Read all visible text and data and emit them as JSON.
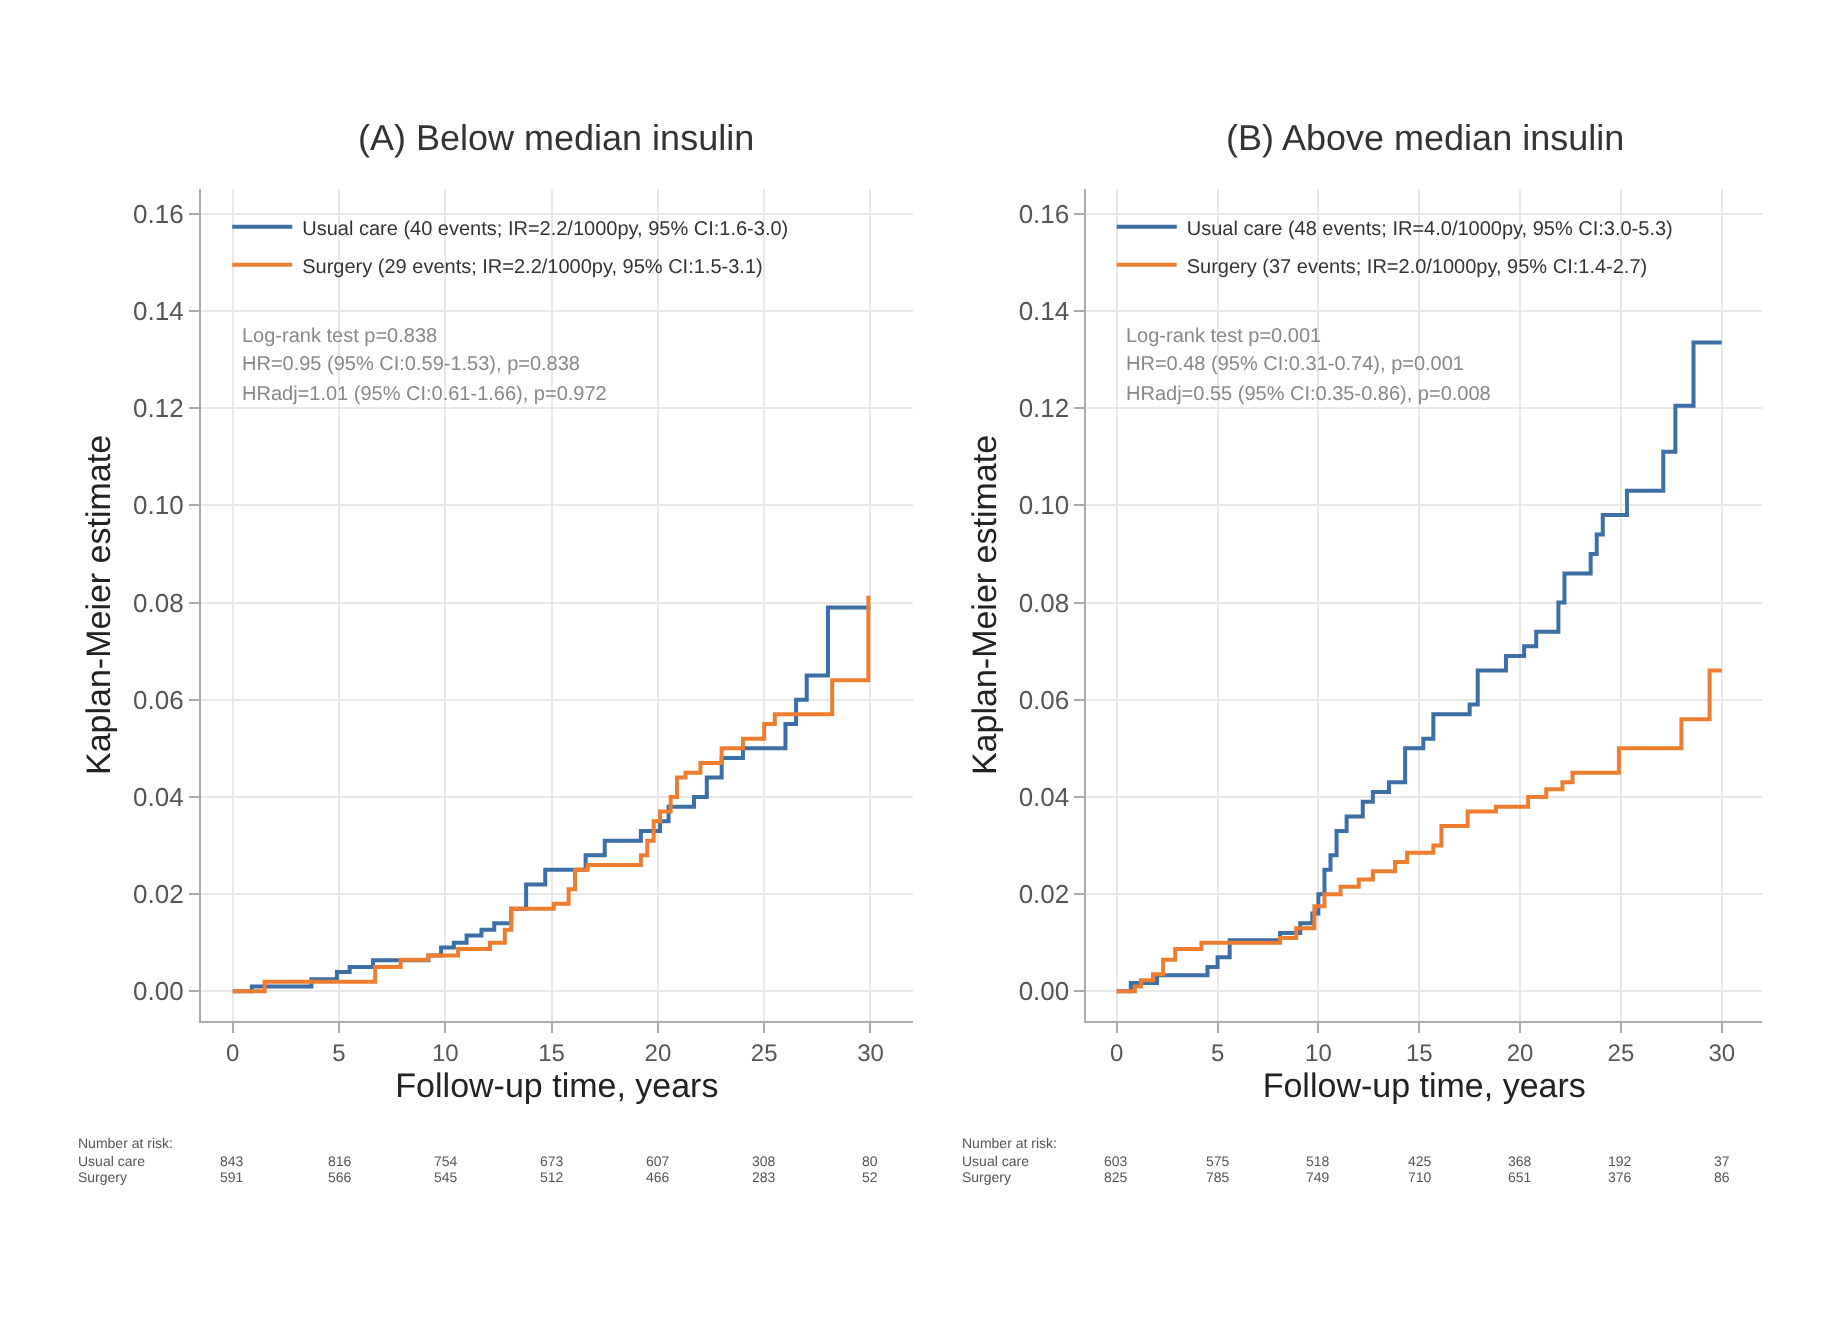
{
  "chart_data": [
    {
      "type": "step",
      "title": "(A) Below median insulin",
      "xlabel": "Follow-up time, years",
      "ylabel": "Kaplan-Meier estimate",
      "xlim": [
        -1.5,
        32
      ],
      "ylim": [
        -0.006,
        0.165
      ],
      "xticks": [
        0,
        5,
        10,
        15,
        20,
        25,
        30
      ],
      "yticks": [
        {
          "value": 0,
          "label": "0.00"
        },
        {
          "value": 0.02,
          "label": "0.02"
        },
        {
          "value": 0.04,
          "label": "0.04"
        },
        {
          "value": 0.06,
          "label": "0.06"
        },
        {
          "value": 0.08,
          "label": "0.08"
        },
        {
          "value": 0.1,
          "label": "0.10"
        },
        {
          "value": 0.12,
          "label": "0.12"
        },
        {
          "value": 0.14,
          "label": "0.14"
        },
        {
          "value": 0.16,
          "label": "0.16"
        }
      ],
      "grid": true,
      "legend": "top left",
      "series": [
        {
          "name": "Usual care (40 events; IR=2.2/1000py, 95% CI:1.6-3.0)",
          "color": "#3b6fa6",
          "x": [
            0,
            0.9,
            3.7,
            4.9,
            5.5,
            6.6,
            9.2,
            9.8,
            10.4,
            11.0,
            11.7,
            12.3,
            13.1,
            13.8,
            14.7,
            16.6,
            17.5,
            19.2,
            20.1,
            20.5,
            21.7,
            22.3,
            23,
            24,
            26,
            26.5,
            27,
            28,
            30
          ],
          "values": [
            0,
            0.001,
            0.0025,
            0.004,
            0.005,
            0.0064,
            0.0074,
            0.009,
            0.01,
            0.0115,
            0.0127,
            0.014,
            0.017,
            0.022,
            0.025,
            0.028,
            0.031,
            0.033,
            0.035,
            0.038,
            0.04,
            0.044,
            0.048,
            0.05,
            0.055,
            0.06,
            0.065,
            0.079,
            0.079
          ]
        },
        {
          "name": "Surgery (29 events; IR=2.2/1000py, 95% CI:1.5-3.1)",
          "color": "#ee7d2f",
          "x": [
            0,
            1.5,
            6.7,
            7.9,
            9.2,
            10.6,
            12.1,
            12.8,
            13.1,
            15.1,
            15.8,
            16.1,
            16.7,
            19.2,
            19.5,
            19.8,
            20.1,
            20.6,
            20.9,
            21.3,
            22,
            23,
            24,
            25,
            25.5,
            28.2,
            29.9,
            30
          ],
          "values": [
            0,
            0.002,
            0.005,
            0.0065,
            0.0074,
            0.0087,
            0.01,
            0.0127,
            0.017,
            0.018,
            0.021,
            0.025,
            0.026,
            0.028,
            0.031,
            0.035,
            0.037,
            0.04,
            0.044,
            0.045,
            0.047,
            0.05,
            0.052,
            0.055,
            0.057,
            0.064,
            0.081,
            0.081
          ]
        }
      ],
      "annotations": [
        "Log-rank test p=0.838",
        "HR=0.95 (95% CI:0.59-1.53), p=0.838",
        "HRadj=1.01 (95% CI:0.61-1.66), p=0.972",
        "Number at risk:",
        "Usual care",
        "843",
        "816",
        "754",
        "673",
        "607",
        "308",
        "80",
        "Surgery",
        "591",
        "566",
        "545",
        "512",
        "466",
        "283",
        "52"
      ]
    },
    {
      "type": "step",
      "title": "(B) Above median insulin",
      "xlabel": "Follow-up time, years",
      "ylabel": "Kaplan-Meier estimate",
      "xlim": [
        -1.5,
        32
      ],
      "ylim": [
        -0.006,
        0.165
      ],
      "xticks": [
        0,
        5,
        10,
        15,
        20,
        25,
        30
      ],
      "yticks": [
        {
          "value": 0,
          "label": "0.00"
        },
        {
          "value": 0.02,
          "label": "0.02"
        },
        {
          "value": 0.04,
          "label": "0.04"
        },
        {
          "value": 0.06,
          "label": "0.06"
        },
        {
          "value": 0.08,
          "label": "0.08"
        },
        {
          "value": 0.1,
          "label": "0.10"
        },
        {
          "value": 0.12,
          "label": "0.12"
        },
        {
          "value": 0.14,
          "label": "0.14"
        },
        {
          "value": 0.16,
          "label": "0.16"
        }
      ],
      "grid": true,
      "legend": "top left",
      "series": [
        {
          "name": "Usual care (48 events; IR=4.0/1000py, 95% CI:3.0-5.3)",
          "color": "#3b6fa6",
          "x": [
            0,
            0.7,
            2.0,
            4.5,
            5.0,
            5.6,
            8.1,
            9.1,
            9.7,
            10.0,
            10.3,
            10.6,
            10.9,
            11.4,
            12.2,
            12.7,
            13.5,
            14.3,
            15.2,
            15.7,
            17.5,
            17.9,
            19.3,
            20.2,
            20.8,
            21.9,
            22.2,
            23.5,
            23.8,
            24.1,
            25.3,
            27.1,
            27.7,
            28.6,
            30
          ],
          "values": [
            0,
            0.0017,
            0.0033,
            0.005,
            0.007,
            0.0105,
            0.012,
            0.014,
            0.016,
            0.02,
            0.025,
            0.028,
            0.033,
            0.036,
            0.039,
            0.041,
            0.043,
            0.05,
            0.052,
            0.057,
            0.059,
            0.066,
            0.069,
            0.071,
            0.074,
            0.08,
            0.086,
            0.09,
            0.094,
            0.098,
            0.103,
            0.111,
            0.1205,
            0.1335,
            0.1335
          ]
        },
        {
          "name": "Surgery (37 events; IR=2.0/1000py, 95% CI:1.4-2.7)",
          "color": "#ee7d2f",
          "x": [
            0,
            0.9,
            1.2,
            1.8,
            2.3,
            2.9,
            4.2,
            8.1,
            8.9,
            9.8,
            10.3,
            11.1,
            12.0,
            12.7,
            13.8,
            14.4,
            15.7,
            16.1,
            17.4,
            18.8,
            20.4,
            21.3,
            22.1,
            22.6,
            24.9,
            28.0,
            29.4,
            30
          ],
          "values": [
            0,
            0.001,
            0.0023,
            0.0035,
            0.0065,
            0.0087,
            0.01,
            0.011,
            0.013,
            0.0175,
            0.02,
            0.0215,
            0.023,
            0.0247,
            0.0266,
            0.0285,
            0.03,
            0.034,
            0.037,
            0.038,
            0.04,
            0.0416,
            0.043,
            0.045,
            0.05,
            0.056,
            0.066,
            0.066
          ]
        }
      ],
      "annotations": [
        "Log-rank test p=0.001",
        "HR=0.48 (95% CI:0.31-0.74), p=0.001",
        "HRadj=0.55 (95% CI:0.35-0.86), p=0.008",
        "Number at risk:",
        "Usual care",
        "603",
        "575",
        "518",
        "425",
        "368",
        "192",
        "37",
        "Surgery",
        "825",
        "785",
        "749",
        "710",
        "651",
        "376",
        "86"
      ]
    }
  ]
}
